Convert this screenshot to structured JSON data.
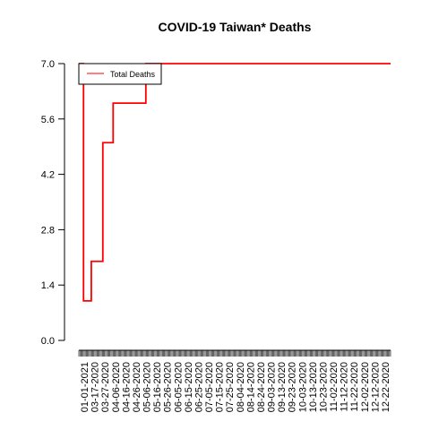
{
  "chart_data": {
    "type": "line",
    "title": "COVID-19 Taiwan* Deaths",
    "xlabel": "",
    "ylabel": "",
    "ylim": [
      0,
      7
    ],
    "yticks": [
      "0.0",
      "1.4",
      "2.8",
      "4.2",
      "5.6",
      "7.0"
    ],
    "x_tick_labels": [
      "01-01-2021",
      "03-17-2020",
      "03-27-2020",
      "04-06-2020",
      "04-16-2020",
      "04-26-2020",
      "05-06-2020",
      "05-16-2020",
      "05-26-2020",
      "06-05-2020",
      "06-15-2020",
      "06-25-2020",
      "07-05-2020",
      "07-15-2020",
      "07-25-2020",
      "08-04-2020",
      "08-14-2020",
      "08-24-2020",
      "09-03-2020",
      "09-13-2020",
      "09-23-2020",
      "10-03-2020",
      "10-13-2020",
      "10-23-2020",
      "11-02-2020",
      "11-12-2020",
      "11-22-2020",
      "12-02-2020",
      "12-12-2020",
      "12-22-2020"
    ],
    "legend": {
      "position": "top-left",
      "entries": [
        {
          "label": "Total Deaths",
          "color": "#ff0000"
        }
      ]
    },
    "grid": false,
    "series": [
      {
        "name": "Total Deaths",
        "color": "#ff0000",
        "points": [
          [
            0,
            7
          ],
          [
            0.012,
            7
          ],
          [
            0.015,
            1
          ],
          [
            0.038,
            1
          ],
          [
            0.04,
            2
          ],
          [
            0.075,
            2
          ],
          [
            0.077,
            5
          ],
          [
            0.108,
            5
          ],
          [
            0.11,
            6
          ],
          [
            0.213,
            6
          ],
          [
            0.215,
            7
          ],
          [
            1,
            7
          ]
        ]
      }
    ]
  }
}
